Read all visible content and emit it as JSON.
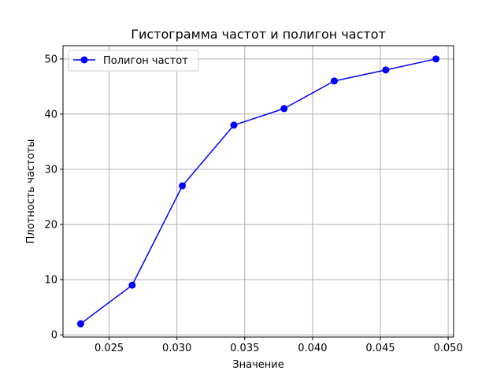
{
  "chart_data": {
    "type": "line",
    "title": "Гистограмма частот и полигон частот",
    "xlabel": "Значение",
    "ylabel": "Плотность частоты",
    "xlim": [
      0.0216,
      0.0504
    ],
    "ylim": [
      -0.4,
      52.4
    ],
    "x_ticks": [
      0.025,
      0.03,
      0.035,
      0.04,
      0.045,
      0.05
    ],
    "x_tick_labels": [
      "0.025",
      "0.030",
      "0.035",
      "0.040",
      "0.045",
      "0.050"
    ],
    "y_ticks": [
      0,
      10,
      20,
      30,
      40,
      50
    ],
    "y_tick_labels": [
      "0",
      "10",
      "20",
      "30",
      "40",
      "50"
    ],
    "grid": true,
    "legend_position": "top-left",
    "series": [
      {
        "name": "Полигон частот",
        "color": "#0000ff",
        "marker": "circle",
        "x": [
          0.0229,
          0.0267,
          0.0304,
          0.0342,
          0.0379,
          0.0416,
          0.0454,
          0.0491
        ],
        "y": [
          2,
          9,
          27,
          38,
          41,
          46,
          48,
          50
        ]
      }
    ]
  }
}
